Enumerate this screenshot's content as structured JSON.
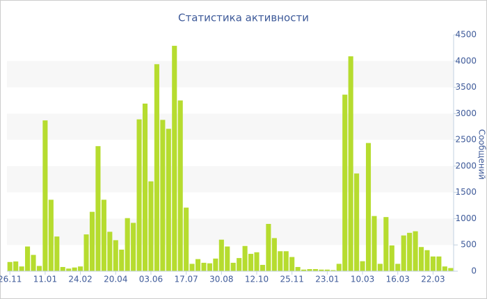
{
  "chart_data": {
    "type": "bar",
    "title": "Статистика активности",
    "y_axis_label": "Сообщений",
    "categories": [
      "26.11",
      null,
      null,
      null,
      null,
      null,
      "11.01",
      null,
      null,
      null,
      null,
      null,
      "24.02",
      null,
      null,
      null,
      null,
      null,
      "20.04",
      null,
      null,
      null,
      null,
      null,
      "03.06",
      null,
      null,
      null,
      null,
      null,
      "17.07",
      null,
      null,
      null,
      null,
      null,
      "30.08",
      null,
      null,
      null,
      null,
      null,
      "12.10",
      null,
      null,
      null,
      null,
      null,
      "25.11",
      null,
      null,
      null,
      null,
      null,
      "23.01",
      null,
      null,
      null,
      null,
      null,
      "10.03",
      null,
      null,
      null,
      null,
      null,
      "16.03",
      null,
      null,
      null,
      null,
      null,
      "22.03",
      null,
      null,
      null
    ],
    "values": [
      175,
      185,
      90,
      470,
      310,
      100,
      2870,
      1360,
      660,
      80,
      50,
      70,
      90,
      700,
      1130,
      2380,
      1360,
      750,
      590,
      410,
      1010,
      920,
      2890,
      3190,
      1710,
      3940,
      2880,
      2710,
      4290,
      3250,
      1210,
      140,
      230,
      160,
      150,
      240,
      600,
      470,
      160,
      250,
      480,
      330,
      360,
      120,
      900,
      630,
      380,
      380,
      270,
      80,
      30,
      40,
      40,
      30,
      30,
      20,
      140,
      3360,
      4090,
      1860,
      190,
      2440,
      1050,
      140,
      1030,
      490,
      140,
      680,
      730,
      760,
      460,
      400,
      280,
      280,
      90,
      60
    ],
    "color": "#b6dc2f",
    "ylim": [
      0,
      4500
    ],
    "yticks": [
      0,
      500,
      1000,
      1500,
      2000,
      2500,
      3000,
      3500,
      4000,
      4500
    ],
    "y_axis_side": "right",
    "banded_grid": true
  }
}
